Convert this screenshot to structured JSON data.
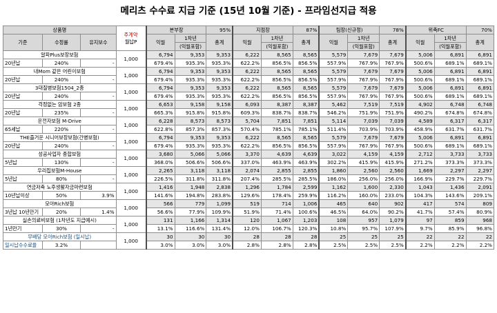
{
  "title": "메리츠 수수료 지급 기준 (15년 10월 기준) - 프라임선지급 적용",
  "header": {
    "product": "상품명",
    "base": "기준",
    "fee_rate": "수정률",
    "maintenance": "유지보수",
    "premium_top": "주계약",
    "premium_bottom": "월납P",
    "groups": [
      {
        "name": "본부장",
        "pct": "95%"
      },
      {
        "name": "지점장",
        "pct": "87%"
      },
      {
        "name": "팀장(신규정)",
        "pct": "78%"
      },
      {
        "name": "위촉FC",
        "pct": "70%"
      }
    ],
    "sub": {
      "c1": "익월",
      "c2a": "1차년",
      "c2b": "(익월포함)",
      "c3": "총계"
    }
  },
  "rows": [
    {
      "name": "알파Plus보장보험",
      "base": "20년납",
      "rate": "240%",
      "maint": "-",
      "prem": "1,000",
      "a": [
        [
          "6,794",
          "9,353",
          "9,353"
        ],
        [
          "6,222",
          "8,565",
          "8,565"
        ],
        [
          "5,579",
          "7,679",
          "7,679"
        ],
        [
          "5,006",
          "6,891",
          "6,891"
        ]
      ],
      "b": [
        [
          "679.4%",
          "935.3%",
          "935.3%"
        ],
        [
          "622.2%",
          "856.5%",
          "856.5%"
        ],
        [
          "557.9%",
          "767.9%",
          "767.9%"
        ],
        [
          "500.6%",
          "689.1%",
          "689.1%"
        ]
      ]
    },
    {
      "name": "내Mom 같은 어린이보험",
      "base": "20년납",
      "rate": "240%",
      "maint": "-",
      "prem": "1,000",
      "a": [
        [
          "6,794",
          "9,353",
          "9,353"
        ],
        [
          "6,222",
          "8,565",
          "8,565"
        ],
        [
          "5,579",
          "7,679",
          "7,679"
        ],
        [
          "5,006",
          "6,891",
          "6,891"
        ]
      ],
      "b": [
        [
          "679.4%",
          "935.3%",
          "935.3%"
        ],
        [
          "622.2%",
          "856.5%",
          "856.5%"
        ],
        [
          "557.9%",
          "767.9%",
          "767.9%"
        ],
        [
          "500.6%",
          "689.1%",
          "689.1%"
        ]
      ]
    },
    {
      "name": "3대질병보험1504_2종",
      "base": "20년납",
      "rate": "240%",
      "maint": "-",
      "prem": "1,000",
      "a": [
        [
          "6,794",
          "9,353",
          "9,353"
        ],
        [
          "6,222",
          "8,565",
          "8,565"
        ],
        [
          "5,579",
          "7,679",
          "7,679"
        ],
        [
          "5,006",
          "6,891",
          "6,891"
        ]
      ],
      "b": [
        [
          "679.4%",
          "935.3%",
          "935.3%"
        ],
        [
          "622.2%",
          "856.5%",
          "856.5%"
        ],
        [
          "557.9%",
          "767.9%",
          "767.9%"
        ],
        [
          "500.6%",
          "689.1%",
          "689.1%"
        ]
      ]
    },
    {
      "name": "걱정없는 암보험 2종",
      "base": "20년납",
      "rate": "235%",
      "maint": "-",
      "prem": "1,000",
      "a": [
        [
          "6,653",
          "9,158",
          "9,158"
        ],
        [
          "6,093",
          "8,387",
          "8,387"
        ],
        [
          "5,462",
          "7,519",
          "7,519"
        ],
        [
          "4,902",
          "6,748",
          "6,748"
        ]
      ],
      "b": [
        [
          "665.3%",
          "915.8%",
          "915.8%"
        ],
        [
          "609.3%",
          "838.7%",
          "838.7%"
        ],
        [
          "546.2%",
          "751.9%",
          "751.9%"
        ],
        [
          "490.2%",
          "674.8%",
          "674.8%"
        ]
      ]
    },
    {
      "name": "운전자보험 M-Drive",
      "base": "65세납",
      "rate": "220%",
      "maint": "-",
      "prem": "1,000",
      "a": [
        [
          "6,228",
          "8,573",
          "8,573"
        ],
        [
          "5,704",
          "7,851",
          "7,851"
        ],
        [
          "5,114",
          "7,039",
          "7,039"
        ],
        [
          "4,589",
          "6,317",
          "6,317"
        ]
      ],
      "b": [
        [
          "622.8%",
          "857.3%",
          "857.3%"
        ],
        [
          "570.4%",
          "785.1%",
          "785.1%"
        ],
        [
          "511.4%",
          "703.9%",
          "703.9%"
        ],
        [
          "458.9%",
          "631.7%",
          "631.7%"
        ]
      ]
    },
    {
      "name": "THE즐거운 시니어보장보험(간병보험)",
      "base": "20년납",
      "rate": "240%",
      "maint": "-",
      "prem": "1,000",
      "a": [
        [
          "6,794",
          "9,353",
          "9,353"
        ],
        [
          "6,222",
          "8,565",
          "8,565"
        ],
        [
          "5,579",
          "7,679",
          "7,679"
        ],
        [
          "5,006",
          "6,891",
          "6,891"
        ]
      ],
      "b": [
        [
          "679.4%",
          "935.3%",
          "935.3%"
        ],
        [
          "622.2%",
          "856.5%",
          "856.5%"
        ],
        [
          "557.9%",
          "767.9%",
          "767.9%"
        ],
        [
          "500.6%",
          "689.1%",
          "689.1%"
        ]
      ]
    },
    {
      "name": "성공사업자 종합보험",
      "base": "5년납",
      "rate": "130%",
      "maint": "-",
      "prem": "1,000",
      "a": [
        [
          "3,680",
          "5,066",
          "5,066"
        ],
        [
          "3,370",
          "4,639",
          "4,639"
        ],
        [
          "3,022",
          "4,159",
          "4,159"
        ],
        [
          "2,712",
          "3,733",
          "3,733"
        ]
      ],
      "b": [
        [
          "368.0%",
          "506.6%",
          "506.6%"
        ],
        [
          "337.0%",
          "463.9%",
          "463.9%"
        ],
        [
          "302.2%",
          "415.9%",
          "415.9%"
        ],
        [
          "271.2%",
          "373.3%",
          "373.3%"
        ]
      ]
    },
    {
      "name": "우리집보험M-House",
      "base": "5년납",
      "rate": "80%",
      "maint": "-",
      "prem": "1,000",
      "a": [
        [
          "2,265",
          "3,118",
          "3,118"
        ],
        [
          "2,074",
          "2,855",
          "2,855"
        ],
        [
          "1,860",
          "2,560",
          "2,560"
        ],
        [
          "1,669",
          "2,297",
          "2,297"
        ]
      ],
      "b": [
        [
          "226.5%",
          "311.8%",
          "311.8%"
        ],
        [
          "207.4%",
          "285.5%",
          "285.5%"
        ],
        [
          "186.0%",
          "256.0%",
          "256.0%"
        ],
        [
          "166.9%",
          "229.7%",
          "229.7%"
        ]
      ]
    },
    {
      "name": "연금저축 노후생활자금마련보험",
      "base": "10년납이상",
      "rate": "50%",
      "maint": "3.9%",
      "prem": "1,000",
      "a": [
        [
          "1,416",
          "1,948",
          "2,838"
        ],
        [
          "1,296",
          "1,784",
          "2,599"
        ],
        [
          "1,162",
          "1,600",
          "2,330"
        ],
        [
          "1,043",
          "1,436",
          "2,091"
        ]
      ],
      "b": [
        [
          "141.6%",
          "194.8%",
          "283.8%"
        ],
        [
          "129.6%",
          "178.4%",
          "259.9%"
        ],
        [
          "116.2%",
          "160.0%",
          "233.0%"
        ],
        [
          "104.3%",
          "143.6%",
          "209.1%"
        ]
      ]
    },
    {
      "name": "모아Rich보험",
      "base": "3년납 10년만기",
      "rate": "20%",
      "maint": "1.4%",
      "prem": "1,000",
      "a": [
        [
          "566",
          "779",
          "1,099"
        ],
        [
          "519",
          "714",
          "1,006"
        ],
        [
          "465",
          "640",
          "902"
        ],
        [
          "417",
          "574",
          "809"
        ]
      ],
      "b": [
        [
          "56.6%",
          "77.9%",
          "109.9%"
        ],
        [
          "51.9%",
          "71.4%",
          "100.6%"
        ],
        [
          "46.5%",
          "64.0%",
          "90.2%"
        ],
        [
          "41.7%",
          "57.4%",
          "80.9%"
        ]
      ]
    },
    {
      "name": "실손의료비보험 (1차년도 지급예시)",
      "base": "1년만기",
      "rate": "30%",
      "maint": "-",
      "prem": "1,000",
      "a": [
        [
          "131",
          "1,166",
          "1,314"
        ],
        [
          "120",
          "1,067",
          "1,203"
        ],
        [
          "108",
          "957",
          "1,079"
        ],
        [
          "97",
          "859",
          "968"
        ]
      ],
      "b": [
        [
          "13.1%",
          "116.6%",
          "131.4%"
        ],
        [
          "12.0%",
          "106.7%",
          "120.3%"
        ],
        [
          "10.8%",
          "95.7%",
          "107.9%"
        ],
        [
          "9.7%",
          "85.9%",
          "96.8%"
        ]
      ]
    },
    {
      "name": "무배당 모아Rich보험",
      "name_suffix": "(일시납)",
      "base": "일시납수수료율",
      "rate": "3.2%",
      "maint": "",
      "prem": "1,000",
      "a": [
        [
          "30",
          "30",
          "30"
        ],
        [
          "28",
          "28",
          "28"
        ],
        [
          "25",
          "25",
          "25"
        ],
        [
          "22",
          "22",
          "22"
        ]
      ],
      "b": [
        [
          "3.0%",
          "3.0%",
          "3.0%"
        ],
        [
          "2.8%",
          "2.8%",
          "2.8%"
        ],
        [
          "2.5%",
          "2.5%",
          "2.5%"
        ],
        [
          "2.2%",
          "2.2%",
          "2.2%"
        ]
      ]
    }
  ]
}
